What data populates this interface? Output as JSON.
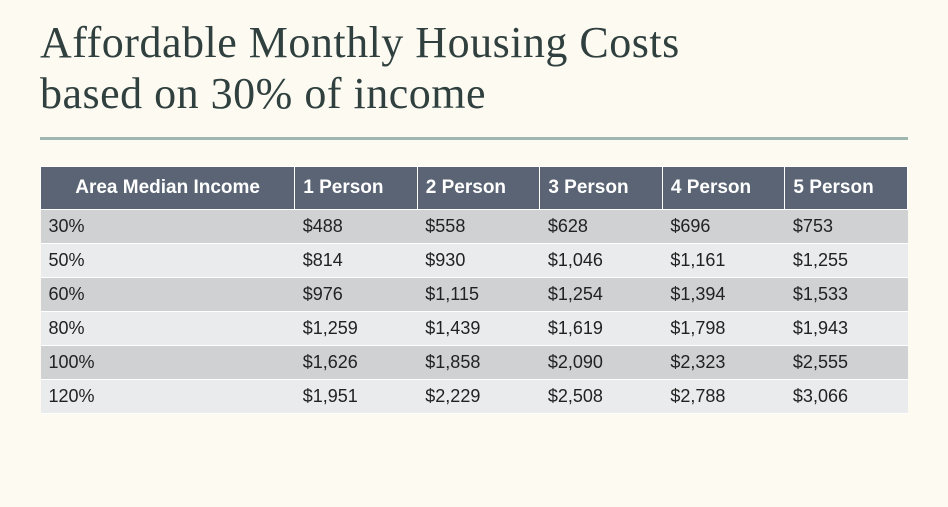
{
  "title_line1": "Affordable Monthly Housing Costs",
  "title_line2": "based on 30% of income",
  "table": {
    "type": "table",
    "header_bg": "#5a6474",
    "header_fg": "#ffffff",
    "row_odd_bg": "#cfd1d3",
    "row_even_bg": "#eaebec",
    "border_color": "#ffffff",
    "font_family": "Arial",
    "header_fontsize": 19,
    "cell_fontsize": 18,
    "columns": [
      "Area Median Income",
      "1 Person",
      "2 Person",
      "3 Person",
      "4 Person",
      "5 Person"
    ],
    "col_widths_pct": [
      17,
      16.6,
      16.6,
      16.6,
      16.6,
      16.6
    ],
    "rows": [
      [
        "30%",
        "$488",
        "$558",
        "$628",
        "$696",
        "$753"
      ],
      [
        "50%",
        "$814",
        "$930",
        "$1,046",
        "$1,161",
        "$1,255"
      ],
      [
        "60%",
        "$976",
        "$1,115",
        "$1,254",
        "$1,394",
        "$1,533"
      ],
      [
        "80%",
        "$1,259",
        "$1,439",
        "$1,619",
        "$1,798",
        "$1,943"
      ],
      [
        "100%",
        "$1,626",
        "$1,858",
        "$2,090",
        "$2,323",
        "$2,555"
      ],
      [
        "120%",
        "$1,951",
        "$2,229",
        "$2,508",
        "$2,788",
        "$3,066"
      ]
    ]
  },
  "page_bg": "#fdfaf2",
  "rule_color": "#9fb7b1",
  "title_color": "#30403f",
  "title_fontsize": 44
}
